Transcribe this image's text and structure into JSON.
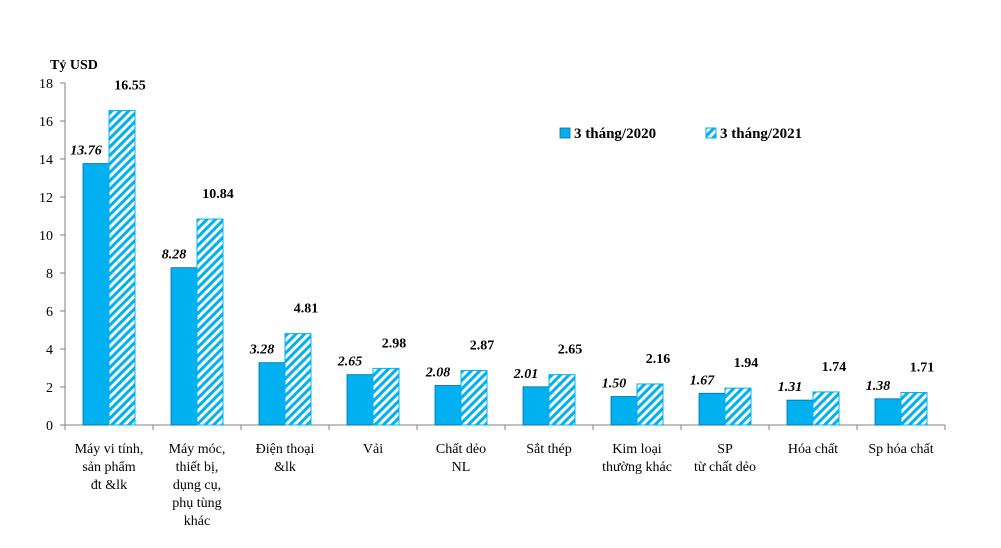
{
  "chart_data": {
    "type": "bar",
    "ylabel": "Tỷ USD",
    "ylim": [
      0,
      18
    ],
    "yticks": [
      0,
      2,
      4,
      6,
      8,
      10,
      12,
      14,
      16,
      18
    ],
    "grid": false,
    "legend_position": "top-right",
    "categories": [
      [
        "Máy vi tính,",
        "sản phẩm",
        "đt &lk"
      ],
      [
        "Máy móc,",
        "thiết bị,",
        "dụng cụ,",
        "phụ tùng",
        "khác"
      ],
      [
        "Điện thoại",
        "&lk"
      ],
      [
        "Vải"
      ],
      [
        "Chất dẻo",
        "NL"
      ],
      [
        "Sắt thép"
      ],
      [
        "Kim loại",
        "thường khác"
      ],
      [
        "SP",
        "từ chất dẻo"
      ],
      [
        "Hóa chất"
      ],
      [
        "Sp hóa chất"
      ]
    ],
    "series": [
      {
        "name": "3 tháng/2020",
        "color": "#00B0F0",
        "pattern": "solid",
        "values": [
          13.76,
          8.28,
          3.28,
          2.65,
          2.08,
          2.01,
          1.5,
          1.67,
          1.31,
          1.38
        ],
        "labels": [
          "13.76",
          "8.28",
          "3.28",
          "2.65",
          "2.08",
          "2.01",
          "1.50",
          "1.67",
          "1.31",
          "1.38"
        ]
      },
      {
        "name": "3 tháng/2021",
        "color": "#00B0F0",
        "pattern": "diagonal-hatch",
        "values": [
          16.55,
          10.84,
          4.81,
          2.98,
          2.87,
          2.65,
          2.16,
          1.94,
          1.74,
          1.71
        ],
        "labels": [
          "16.55",
          "10.84",
          "4.81",
          "2.98",
          "2.87",
          "2.65",
          "2.16",
          "1.94",
          "1.74",
          "1.71"
        ]
      }
    ]
  }
}
